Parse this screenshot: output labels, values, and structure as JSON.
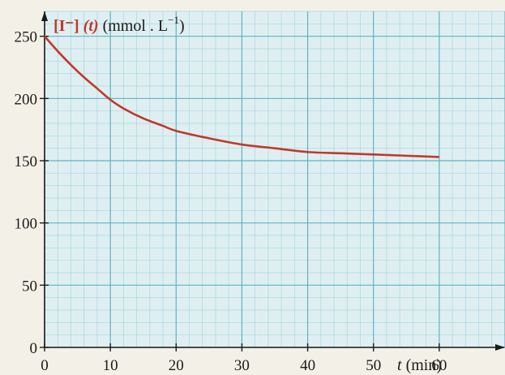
{
  "colors": {
    "paper": "#f3f1e7",
    "plot_bg": "#dfeff1",
    "grid_minor": "#a6d6e1",
    "grid_major": "#5fb2c6",
    "curve": "#c0392b",
    "accent_text": "#c0392b",
    "axis": "#1a1a1a"
  },
  "chart_data": {
    "type": "line",
    "title": "",
    "ylabel": {
      "species": "[I⁻]",
      "variable": "(t)",
      "unit_prefix": "(mmol . L",
      "unit_exponent": "−1",
      "unit_suffix": ")"
    },
    "xlabel": {
      "variable": "t",
      "unit": "(min)"
    },
    "xlim": [
      0,
      70
    ],
    "ylim": [
      0,
      270
    ],
    "x_ticks": [
      0,
      10,
      20,
      30,
      40,
      50,
      60
    ],
    "y_ticks": [
      0,
      50,
      100,
      150,
      200,
      250
    ],
    "grid": true,
    "series": [
      {
        "x": [
          0,
          2,
          4,
          6,
          8,
          10,
          12,
          15,
          18,
          20,
          25,
          30,
          35,
          40,
          45,
          50,
          55,
          60
        ],
        "values": [
          250,
          238,
          227,
          217,
          208,
          199,
          192,
          184,
          178,
          174,
          168,
          163,
          160,
          157,
          156,
          155,
          154,
          153
        ]
      }
    ]
  }
}
